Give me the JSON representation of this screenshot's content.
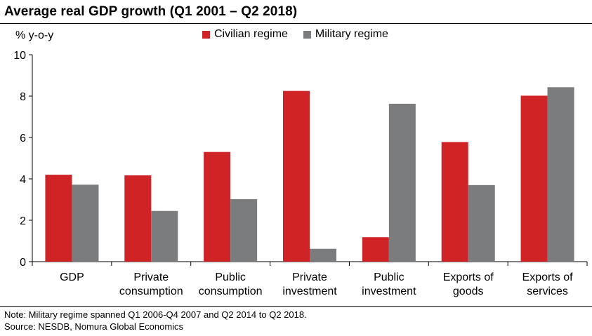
{
  "chart_data": {
    "type": "bar",
    "title": "Average real GDP growth (Q1 2001 – Q2 2018)",
    "ylabel": "% y-o-y",
    "xlabel": "",
    "ylim": [
      0,
      10
    ],
    "yticks": [
      0,
      2,
      4,
      6,
      8,
      10
    ],
    "grid": false,
    "legend_position": "top",
    "categories": [
      [
        "GDP"
      ],
      [
        "Private",
        "consumption"
      ],
      [
        "Public",
        "consumption"
      ],
      [
        "Private",
        "investment"
      ],
      [
        "Public",
        "investment"
      ],
      [
        "Exports of",
        "goods"
      ],
      [
        "Exports of",
        "services"
      ]
    ],
    "series": [
      {
        "name": "Civilian regime",
        "color": "#d02325",
        "values": [
          4.2,
          4.17,
          5.3,
          8.25,
          1.18,
          5.78,
          8.02
        ]
      },
      {
        "name": "Military regime",
        "color": "#7b7c7e",
        "values": [
          3.72,
          2.45,
          3.02,
          0.62,
          7.63,
          3.7,
          8.43
        ]
      }
    ]
  },
  "footer": {
    "note": "Note: Military regime spanned Q1 2006-Q4 2007 and Q2 2014 to Q2 2018.",
    "source": "Source: NESDB, Nomura Global Economics"
  }
}
